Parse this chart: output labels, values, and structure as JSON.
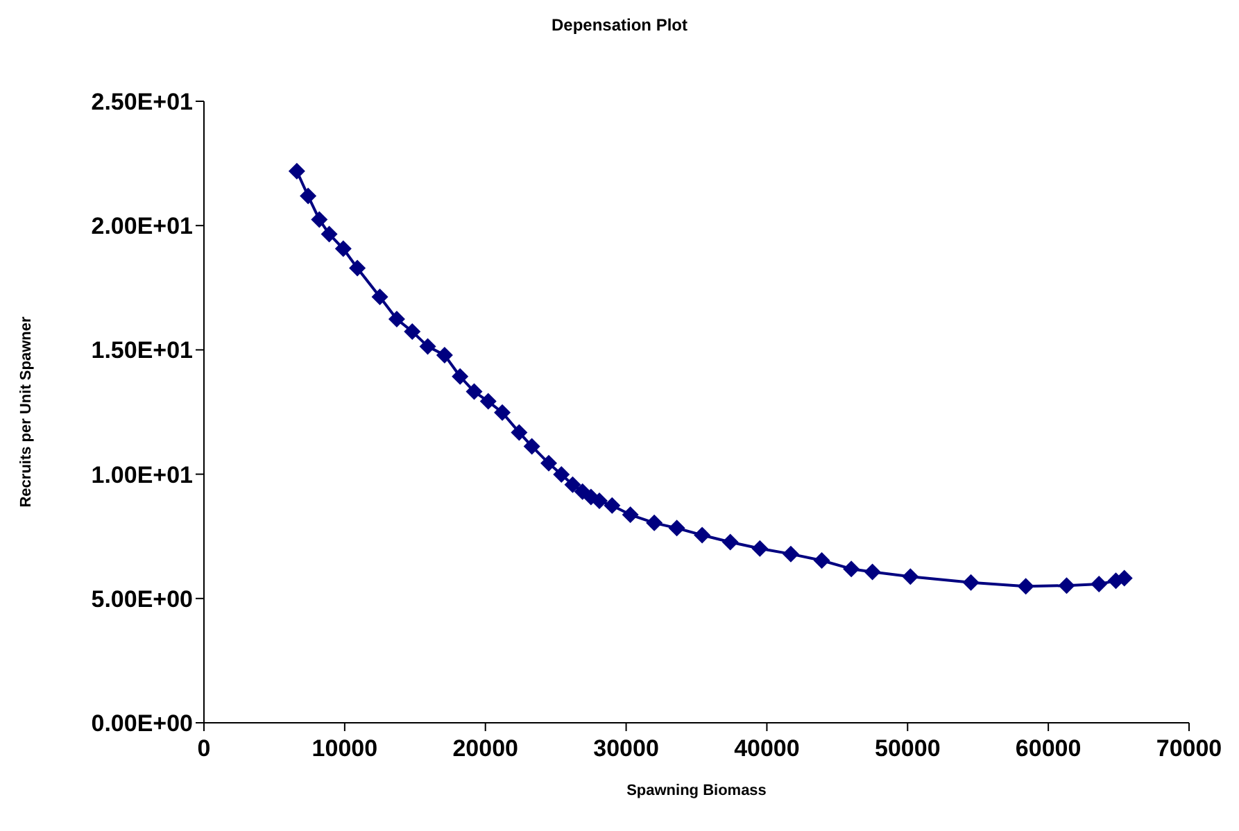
{
  "chart_data": {
    "type": "line",
    "title": "Depensation Plot",
    "xlabel": "Spawning Biomass",
    "ylabel": "Recruits per Unit Spawner",
    "x": [
      6600,
      7400,
      8200,
      8900,
      9900,
      10900,
      12500,
      13700,
      14800,
      15900,
      17100,
      18200,
      19200,
      20200,
      21200,
      22400,
      23300,
      24500,
      25400,
      26200,
      26900,
      27500,
      28100,
      29000,
      30300,
      32000,
      33600,
      35400,
      37400,
      39500,
      41700,
      43900,
      46000,
      47500,
      50200,
      54500,
      58400,
      61300,
      63600,
      64800,
      65400
    ],
    "series": [
      {
        "color": "#000080",
        "values": [
          22.19,
          21.19,
          20.24,
          19.66,
          19.07,
          18.29,
          17.13,
          16.24,
          15.74,
          15.14,
          14.79,
          13.93,
          13.32,
          12.93,
          12.48,
          11.68,
          11.12,
          10.44,
          9.99,
          9.58,
          9.3,
          9.08,
          8.93,
          8.74,
          8.37,
          8.04,
          7.83,
          7.55,
          7.27,
          7.01,
          6.79,
          6.53,
          6.19,
          6.07,
          5.88,
          5.64,
          5.49,
          5.52,
          5.58,
          5.71,
          5.82
        ]
      }
    ],
    "xlim": [
      0,
      70000
    ],
    "xticks": [
      0,
      10000,
      20000,
      30000,
      40000,
      50000,
      60000,
      70000
    ],
    "ylim": [
      0,
      25
    ],
    "yticks": [
      {
        "value": 0,
        "label": "0.00E+00"
      },
      {
        "value": 5,
        "label": "5.00E+00"
      },
      {
        "value": 10,
        "label": "1.00E+01"
      },
      {
        "value": 15,
        "label": "1.50E+01"
      },
      {
        "value": 20,
        "label": "2.00E+01"
      },
      {
        "value": 25,
        "label": "2.50E+01"
      }
    ],
    "marker": "diamond",
    "line_style": "solid",
    "grid": false,
    "legend": false
  }
}
